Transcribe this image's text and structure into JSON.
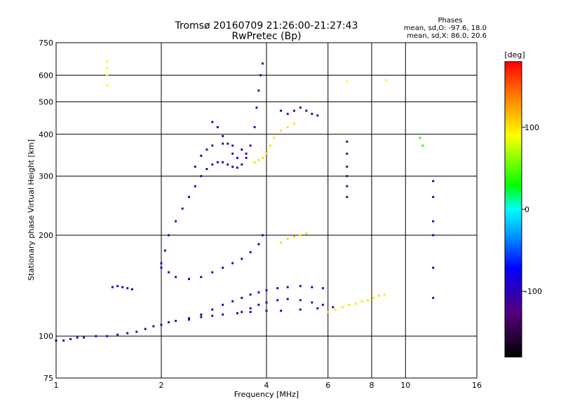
{
  "chart_data": {
    "type": "scatter",
    "title_line1": "Tromsø 20160709 21:26:00-21:27:43",
    "title_line2": "RwPretec (Bp)",
    "phases": {
      "heading": "Phases",
      "o_line": "mean, sd,O: -97.6, 18.0",
      "x_line": "mean, sd,X:  86.0, 20.6"
    },
    "xlabel": "Frequency [MHz]",
    "ylabel": "Stationary phase Virtual Height [km]",
    "x_scale": "log",
    "y_scale": "log",
    "xlim": [
      1,
      16
    ],
    "ylim": [
      75,
      750
    ],
    "x_ticks": [
      1,
      2,
      4,
      6,
      8,
      10,
      16
    ],
    "x_tick_labels": [
      "1",
      "2",
      "4",
      "6",
      "8",
      "10",
      "16"
    ],
    "y_ticks": [
      75,
      100,
      200,
      300,
      400,
      500,
      600,
      750
    ],
    "y_tick_labels": [
      "75",
      "100",
      "200",
      "300",
      "400",
      "500",
      "600",
      "750"
    ],
    "grid": true,
    "colorbar": {
      "label": "[deg]",
      "range": [
        -180,
        180
      ],
      "ticks": [
        100,
        0,
        -100
      ],
      "tick_labels": [
        "100",
        "0",
        "-100"
      ]
    },
    "traces": [
      {
        "phase_deg": -105,
        "points": [
          [
            1.0,
            97
          ],
          [
            1.05,
            97
          ],
          [
            1.1,
            98
          ],
          [
            1.15,
            99
          ],
          [
            1.2,
            99
          ],
          [
            1.3,
            100
          ],
          [
            1.4,
            100
          ],
          [
            1.5,
            101
          ],
          [
            1.6,
            102
          ],
          [
            1.7,
            103
          ],
          [
            1.8,
            105
          ],
          [
            1.9,
            107
          ],
          [
            2.0,
            108
          ],
          [
            2.1,
            110
          ],
          [
            2.2,
            111
          ],
          [
            2.4,
            112
          ],
          [
            2.6,
            114
          ],
          [
            2.8,
            115
          ],
          [
            3.0,
            116
          ],
          [
            3.3,
            117
          ],
          [
            3.6,
            118
          ],
          [
            4.0,
            119
          ],
          [
            4.4,
            119
          ],
          [
            5.0,
            120
          ],
          [
            5.6,
            121
          ]
        ]
      },
      {
        "phase_deg": -100,
        "points": [
          [
            2.4,
            113
          ],
          [
            2.6,
            116
          ],
          [
            2.8,
            120
          ],
          [
            3.0,
            124
          ],
          [
            3.2,
            127
          ],
          [
            3.4,
            130
          ],
          [
            3.6,
            133
          ],
          [
            3.8,
            135
          ],
          [
            4.0,
            137
          ],
          [
            4.3,
            139
          ],
          [
            4.6,
            140
          ],
          [
            5.0,
            141
          ],
          [
            5.4,
            140
          ],
          [
            5.8,
            139
          ]
        ]
      },
      {
        "phase_deg": -110,
        "points": [
          [
            3.4,
            118
          ],
          [
            3.6,
            121
          ],
          [
            3.8,
            124
          ],
          [
            4.0,
            126
          ],
          [
            4.3,
            128
          ],
          [
            4.6,
            129
          ],
          [
            5.0,
            128
          ],
          [
            5.4,
            126
          ],
          [
            5.8,
            124
          ],
          [
            6.2,
            122
          ]
        ]
      },
      {
        "phase_deg": -95,
        "points": [
          [
            2.0,
            160
          ],
          [
            2.1,
            155
          ],
          [
            2.2,
            150
          ],
          [
            2.4,
            148
          ],
          [
            2.6,
            150
          ],
          [
            2.8,
            155
          ],
          [
            3.0,
            160
          ],
          [
            3.2,
            165
          ],
          [
            3.4,
            170
          ],
          [
            3.6,
            178
          ],
          [
            3.8,
            188
          ],
          [
            3.9,
            200
          ]
        ]
      },
      {
        "phase_deg": -105,
        "points": [
          [
            2.0,
            165
          ],
          [
            2.05,
            180
          ],
          [
            2.1,
            200
          ],
          [
            2.2,
            220
          ],
          [
            2.3,
            240
          ],
          [
            2.4,
            260
          ],
          [
            2.5,
            280
          ],
          [
            2.6,
            300
          ],
          [
            2.7,
            315
          ],
          [
            2.8,
            325
          ],
          [
            2.9,
            330
          ],
          [
            3.0,
            330
          ],
          [
            3.1,
            325
          ],
          [
            3.2,
            320
          ],
          [
            3.3,
            318
          ],
          [
            3.4,
            325
          ],
          [
            3.5,
            340
          ],
          [
            3.6,
            370
          ],
          [
            3.7,
            420
          ],
          [
            3.75,
            480
          ],
          [
            3.8,
            540
          ],
          [
            3.85,
            600
          ],
          [
            3.9,
            650
          ]
        ]
      },
      {
        "phase_deg": -110,
        "points": [
          [
            2.5,
            320
          ],
          [
            2.6,
            345
          ],
          [
            2.7,
            360
          ],
          [
            2.8,
            370
          ],
          [
            3.0,
            375
          ],
          [
            3.2,
            370
          ],
          [
            3.4,
            360
          ],
          [
            3.5,
            350
          ]
        ]
      },
      {
        "phase_deg": -90,
        "points": [
          [
            2.8,
            435
          ],
          [
            2.9,
            420
          ],
          [
            3.0,
            395
          ],
          [
            3.1,
            375
          ],
          [
            3.2,
            350
          ],
          [
            3.3,
            340
          ]
        ]
      },
      {
        "phase_deg": -115,
        "points": [
          [
            4.4,
            470
          ],
          [
            4.6,
            460
          ],
          [
            4.8,
            470
          ],
          [
            5.0,
            480
          ],
          [
            5.2,
            470
          ],
          [
            5.4,
            460
          ],
          [
            5.6,
            455
          ]
        ]
      },
      {
        "phase_deg": 100,
        "points": [
          [
            3.7,
            330
          ],
          [
            3.8,
            335
          ],
          [
            3.9,
            340
          ],
          [
            4.0,
            350
          ],
          [
            4.1,
            370
          ],
          [
            4.2,
            390
          ],
          [
            4.4,
            410
          ],
          [
            4.6,
            420
          ],
          [
            4.8,
            430
          ]
        ]
      },
      {
        "phase_deg": 105,
        "points": [
          [
            4.4,
            190
          ],
          [
            4.6,
            195
          ],
          [
            4.8,
            198
          ],
          [
            5.0,
            200
          ],
          [
            5.2,
            202
          ]
        ]
      },
      {
        "phase_deg": 100,
        "points": [
          [
            6.0,
            118
          ],
          [
            6.3,
            120
          ],
          [
            6.6,
            122
          ],
          [
            6.9,
            124
          ],
          [
            7.2,
            125
          ],
          [
            7.5,
            127
          ],
          [
            7.8,
            128
          ],
          [
            8.1,
            130
          ],
          [
            8.4,
            132
          ],
          [
            8.7,
            133
          ]
        ]
      },
      {
        "phase_deg": -100,
        "points": [
          [
            1.45,
            140
          ],
          [
            1.5,
            141
          ],
          [
            1.55,
            140
          ],
          [
            1.6,
            139
          ],
          [
            1.65,
            138
          ]
        ]
      },
      {
        "phase_deg": 90,
        "points": [
          [
            1.4,
            660
          ],
          [
            1.4,
            630
          ],
          [
            1.4,
            600
          ],
          [
            1.4,
            560
          ],
          [
            6.8,
            575
          ],
          [
            8.8,
            580
          ]
        ]
      },
      {
        "phase_deg": -120,
        "points": [
          [
            6.8,
            380
          ],
          [
            6.8,
            350
          ],
          [
            6.8,
            320
          ],
          [
            6.8,
            300
          ],
          [
            6.8,
            280
          ],
          [
            6.8,
            260
          ]
        ]
      },
      {
        "phase_deg": 40,
        "points": [
          [
            11.0,
            390
          ],
          [
            11.2,
            370
          ]
        ]
      },
      {
        "phase_deg": -100,
        "points": [
          [
            12.0,
            290
          ],
          [
            12.0,
            260
          ],
          [
            12.0,
            220
          ],
          [
            12.0,
            200
          ],
          [
            12.0,
            160
          ],
          [
            12.0,
            130
          ]
        ]
      }
    ]
  }
}
